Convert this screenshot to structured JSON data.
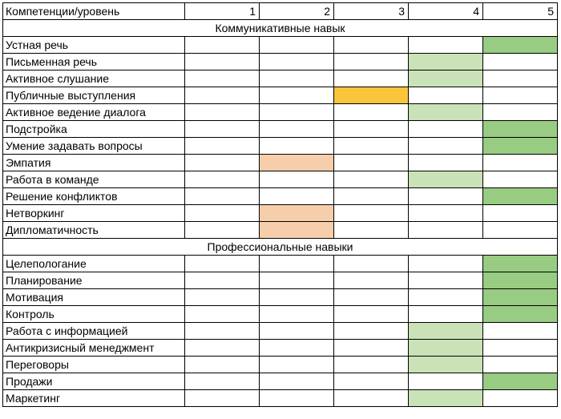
{
  "header": {
    "label": "Компетенции/уровень",
    "levels": [
      "1",
      "2",
      "3",
      "4",
      "5"
    ]
  },
  "colors": {
    "1": "#ffffff",
    "2": "#f7ceab",
    "3": "#f9c53a",
    "4": "#c9e2b8",
    "5": "#97cc82"
  },
  "sections": [
    {
      "title": "Коммуникативные навык",
      "rows": [
        {
          "name": "Устная речь",
          "level": 5
        },
        {
          "name": "Письменная речь",
          "level": 4
        },
        {
          "name": "Активное слушание",
          "level": 4
        },
        {
          "name": "Публичные выступления",
          "level": 3
        },
        {
          "name": "Активное ведение диалога",
          "level": 4
        },
        {
          "name": "Подстройка",
          "level": 5
        },
        {
          "name": "Умение задавать вопросы",
          "level": 5
        },
        {
          "name": "Эмпатия",
          "level": 2
        },
        {
          "name": "Работа в команде",
          "level": 4
        },
        {
          "name": "Решение конфликтов",
          "level": 5
        },
        {
          "name": "Нетворкинг",
          "level": 2
        },
        {
          "name": "Дипломатичность",
          "level": 2
        }
      ]
    },
    {
      "title": "Профессиональные навыки",
      "rows": [
        {
          "name": "Целепологание",
          "level": 5
        },
        {
          "name": "Планирование",
          "level": 5
        },
        {
          "name": "Мотивация",
          "level": 5
        },
        {
          "name": "Контроль",
          "level": 5
        },
        {
          "name": "Работа с информацией",
          "level": 4
        },
        {
          "name": "Антикризисный менеджмент",
          "level": 4
        },
        {
          "name": "Переговоры",
          "level": 4
        },
        {
          "name": "Продажи",
          "level": 5
        },
        {
          "name": "Маркетинг",
          "level": 4
        }
      ]
    }
  ]
}
